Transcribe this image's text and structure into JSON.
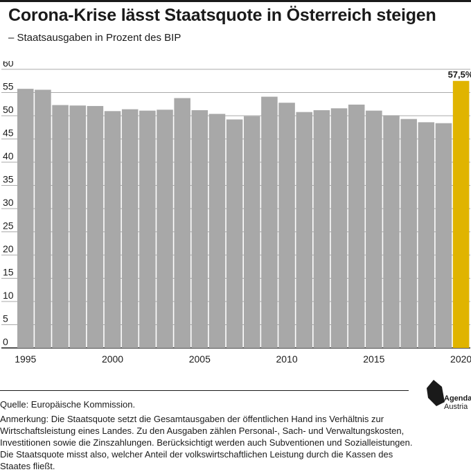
{
  "header": {
    "title": "Corona-Krise lässt Staatsquote in Österreich steigen",
    "subtitle": "– Staatsausgaben in Prozent des BIP"
  },
  "colors": {
    "bar": "#a8a8a8",
    "highlight": "#e0b400",
    "grid": "#555555",
    "text": "#1a1a1a"
  },
  "chart_data": {
    "type": "bar",
    "categories": [
      "1995",
      "1996",
      "1997",
      "1998",
      "1999",
      "2000",
      "2001",
      "2002",
      "2003",
      "2004",
      "2005",
      "2006",
      "2007",
      "2008",
      "2009",
      "2010",
      "2011",
      "2012",
      "2013",
      "2014",
      "2015",
      "2016",
      "2017",
      "2018",
      "2019",
      "2020"
    ],
    "values": [
      55.8,
      55.6,
      52.3,
      52.2,
      52.1,
      51.0,
      51.4,
      51.1,
      51.3,
      53.8,
      51.2,
      50.4,
      49.2,
      49.9,
      54.1,
      52.8,
      50.8,
      51.2,
      51.6,
      52.4,
      51.1,
      50.1,
      49.3,
      48.6,
      48.4,
      57.5
    ],
    "highlight_index": 25,
    "data_labels": [
      {
        "index": 25,
        "text": "57,5%"
      }
    ],
    "x_tick_labels": [
      "1995",
      "2000",
      "2005",
      "2010",
      "2015",
      "2020"
    ],
    "y_tick_labels": [
      "0",
      "5",
      "10",
      "15",
      "20",
      "25",
      "30",
      "35",
      "40",
      "45",
      "50",
      "55",
      "60"
    ],
    "ylim": [
      0,
      60
    ],
    "grid": true
  },
  "footer": {
    "source": "Quelle: Europäische Kommission.",
    "note": "Anmerkung: Die Staatsquote setzt die Gesamtausgaben der öffentlichen Hand ins Verhältnis zur Wirtschaftsleistung eines Landes. Zu den Ausgaben zählen Personal-, Sach- und Verwaltungskosten, Investitionen sowie die Zinszahlungen. Berücksichtigt werden auch Subventionen und Sozialleistungen. Die Staatsquote misst also, welcher Anteil der volkswirtschaftlichen Leistung durch die Kassen des Staates fließt."
  },
  "logo": {
    "line1": "Agenda",
    "line2": "Austria",
    "icon": "agenda-austria-logo-icon"
  }
}
